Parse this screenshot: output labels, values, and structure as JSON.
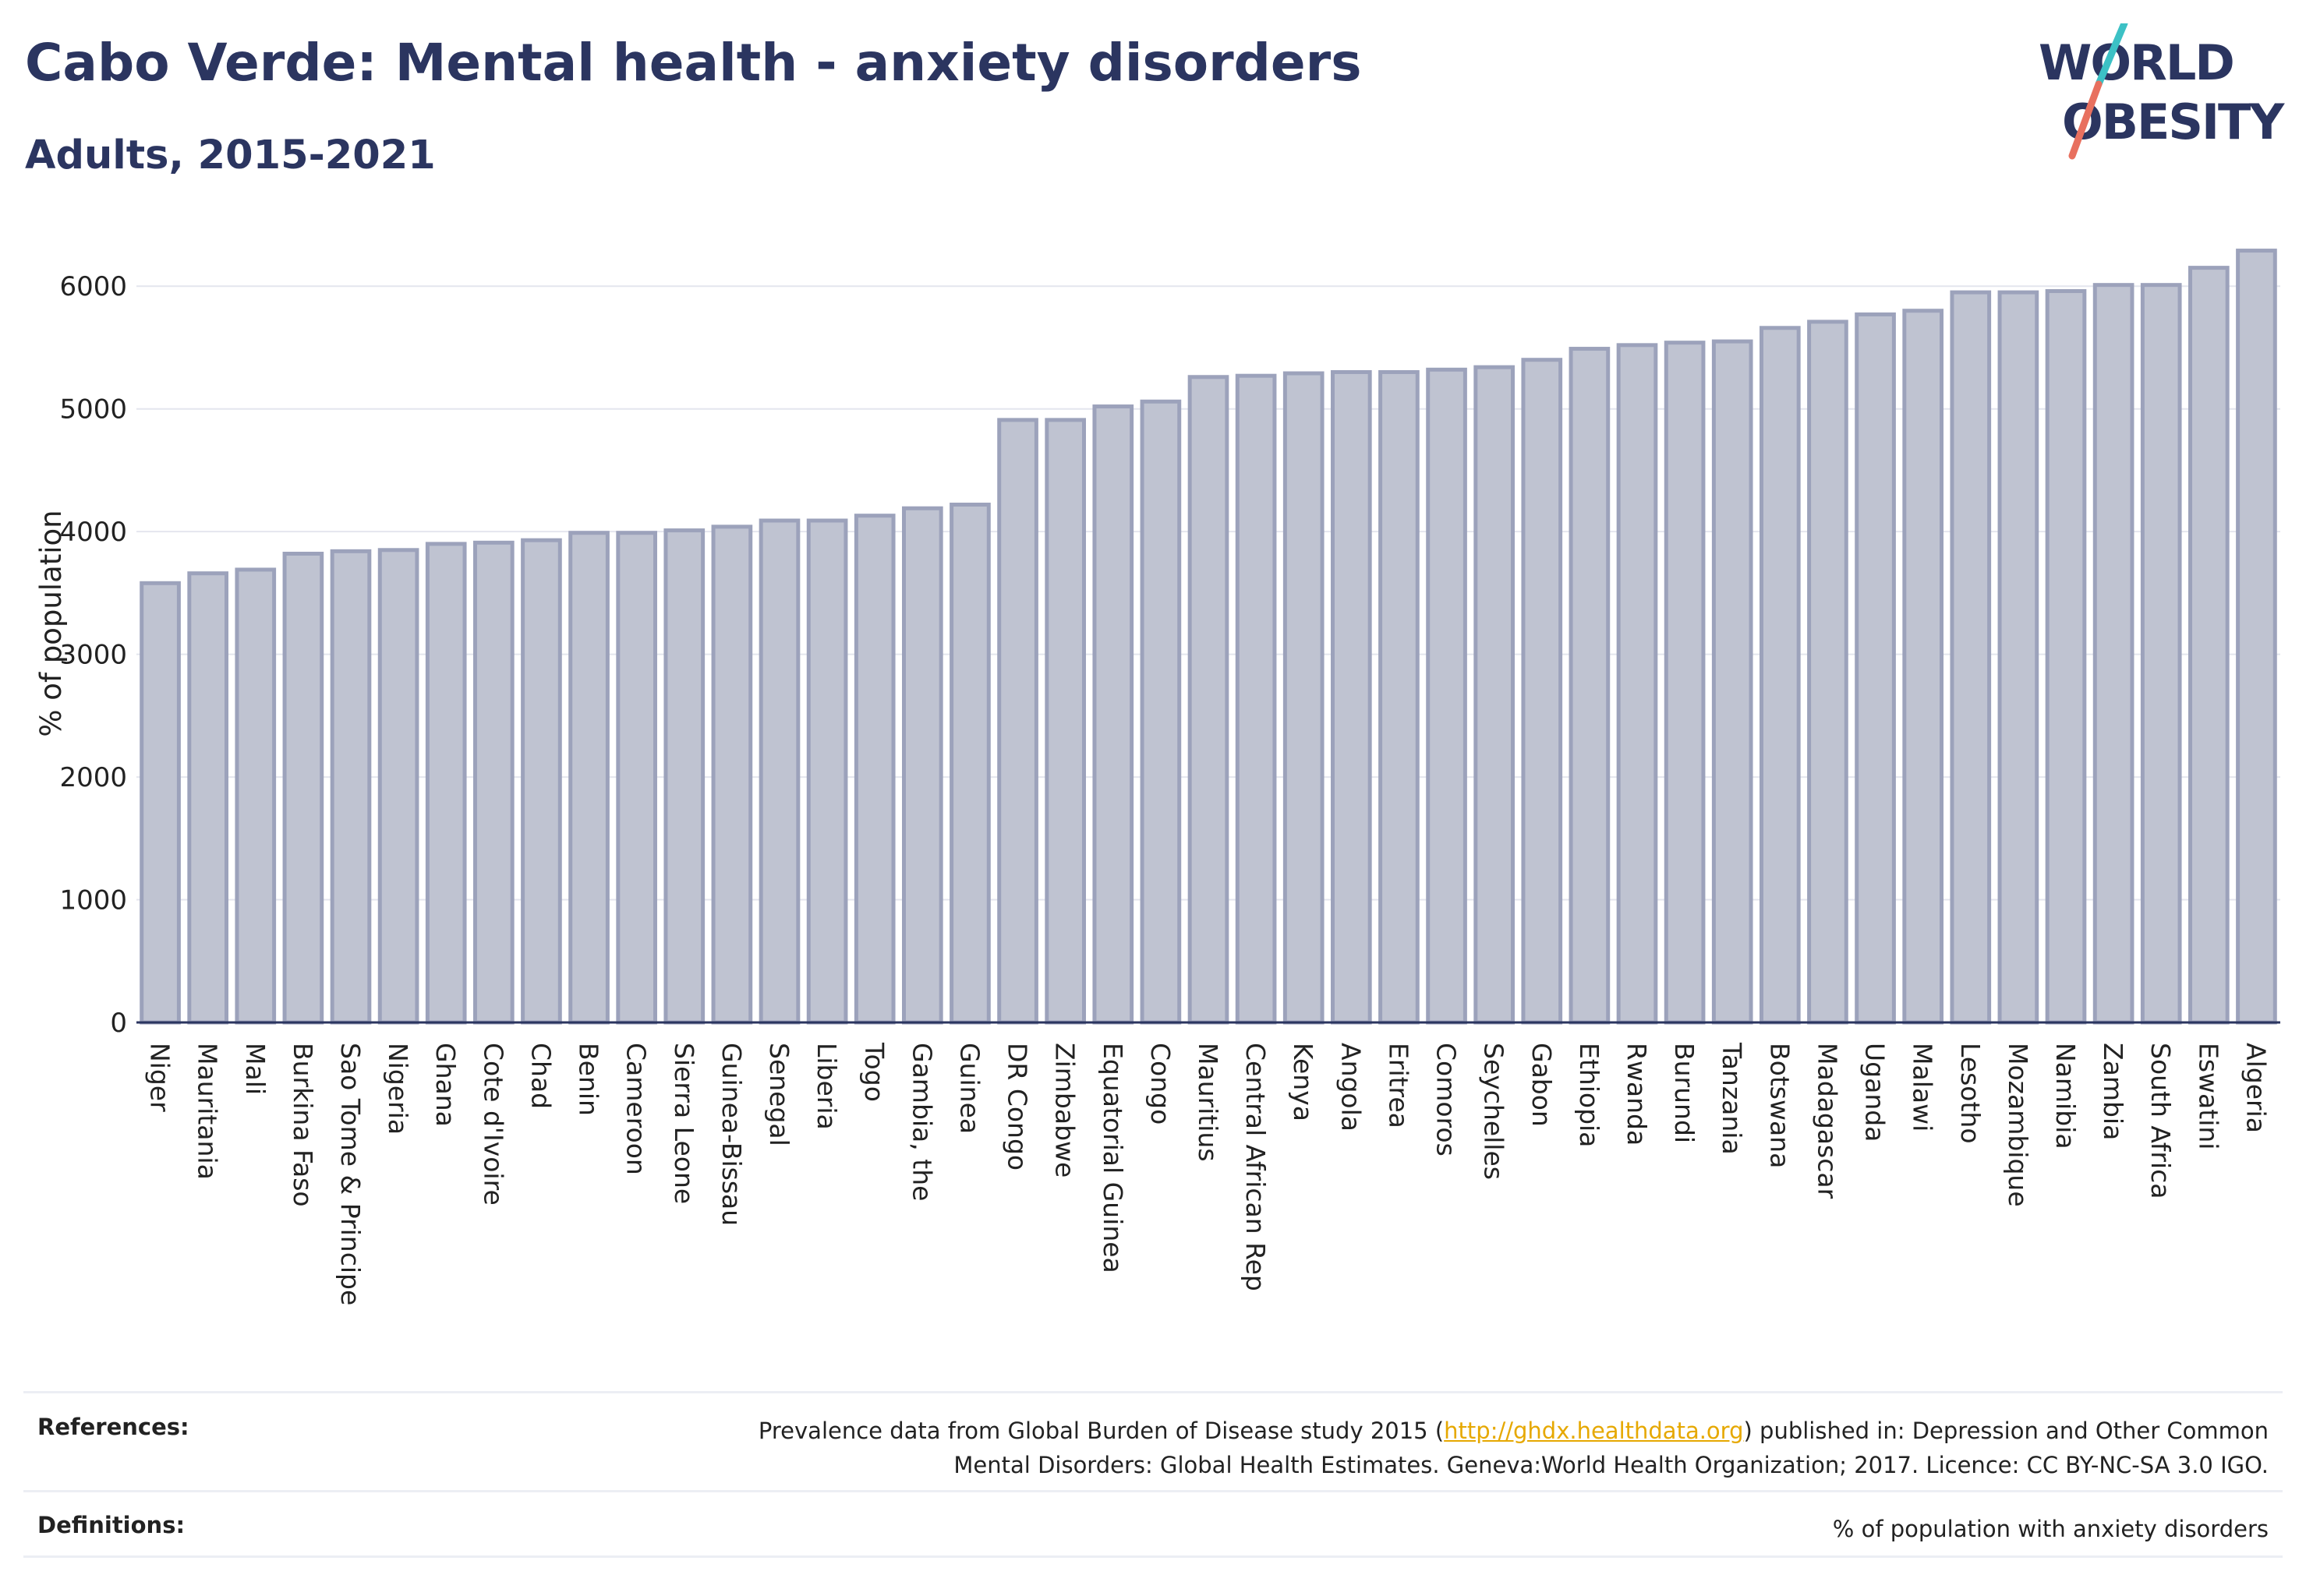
{
  "header": {
    "title": "Cabo Verde: Mental health - anxiety disorders",
    "subtitle": "Adults, 2015-2021"
  },
  "logo": {
    "line1": "WORLD",
    "line2": "OBESITY"
  },
  "colors": {
    "bar_fill": "#bfc3d1",
    "bar_stroke": "#9ca2bb",
    "title": "#2b3560",
    "link": "#e6a800"
  },
  "chart_data": {
    "type": "bar",
    "ylabel": "% of population",
    "ylim": [
      0,
      6300
    ],
    "yticks": [
      0,
      1000,
      2000,
      3000,
      4000,
      5000,
      6000
    ],
    "grid": true,
    "categories": [
      "Niger",
      "Mauritania",
      "Mali",
      "Burkina Faso",
      "Sao Tome & Principe",
      "Nigeria",
      "Ghana",
      "Cote d'Ivoire",
      "Chad",
      "Benin",
      "Cameroon",
      "Sierra Leone",
      "Guinea-Bissau",
      "Senegal",
      "Liberia",
      "Togo",
      "Gambia, the",
      "Guinea",
      "DR Congo",
      "Zimbabwe",
      "Equatorial Guinea",
      "Congo",
      "Mauritius",
      "Central African Rep",
      "Kenya",
      "Angola",
      "Eritrea",
      "Comoros",
      "Seychelles",
      "Gabon",
      "Ethiopia",
      "Rwanda",
      "Burundi",
      "Tanzania",
      "Botswana",
      "Madagascar",
      "Uganda",
      "Malawi",
      "Lesotho",
      "Mozambique",
      "Namibia",
      "Zambia",
      "South Africa",
      "Eswatini",
      "Algeria"
    ],
    "values": [
      3580,
      3660,
      3690,
      3820,
      3840,
      3850,
      3900,
      3910,
      3930,
      3990,
      3990,
      4010,
      4040,
      4090,
      4090,
      4130,
      4190,
      4220,
      4910,
      4910,
      5020,
      5060,
      5260,
      5270,
      5290,
      5300,
      5300,
      5320,
      5340,
      5400,
      5490,
      5520,
      5540,
      5550,
      5660,
      5710,
      5770,
      5800,
      5950,
      5950,
      5960,
      6010,
      6010,
      6150,
      6290
    ]
  },
  "references": {
    "label": "References:",
    "text_before_link": "Prevalence data from Global Burden of Disease study 2015 (",
    "link": "http://ghdx.healthdata.org",
    "text_after_link": ") published in: Depression and Other Common",
    "line2": "Mental Disorders: Global Health Estimates. Geneva:World Health Organization; 2017. Licence: CC BY-NC-SA 3.0 IGO."
  },
  "definitions": {
    "label": "Definitions:",
    "text": "% of population with anxiety disorders"
  }
}
